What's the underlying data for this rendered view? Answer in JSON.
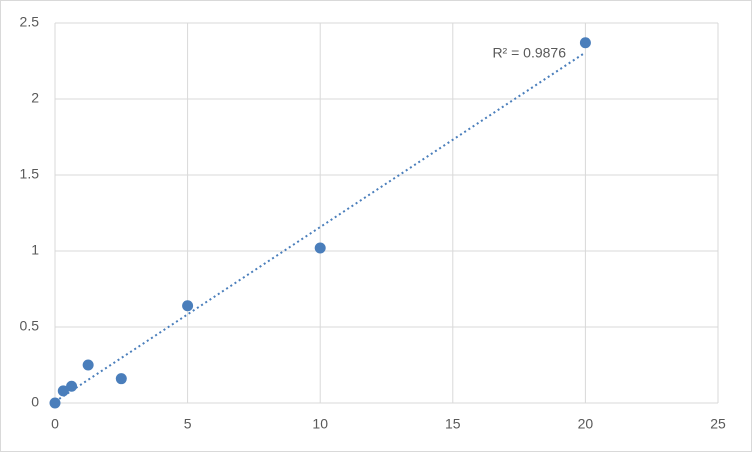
{
  "chart_data": {
    "type": "scatter",
    "x": [
      0,
      0.3125,
      0.625,
      1.25,
      2.5,
      5,
      10,
      20
    ],
    "values": [
      0,
      0.08,
      0.11,
      0.25,
      0.16,
      0.64,
      1.02,
      2.37
    ],
    "color": "#4a7ebb",
    "trendline": "linear",
    "annotation": "R² = 0.9876",
    "xlim": [
      0,
      25
    ],
    "xticks": [
      0,
      5,
      10,
      15,
      20,
      25
    ],
    "ylim": [
      0,
      2.5
    ],
    "yticks": [
      0,
      0.5,
      1,
      1.5,
      2,
      2.5
    ],
    "grid": true
  }
}
